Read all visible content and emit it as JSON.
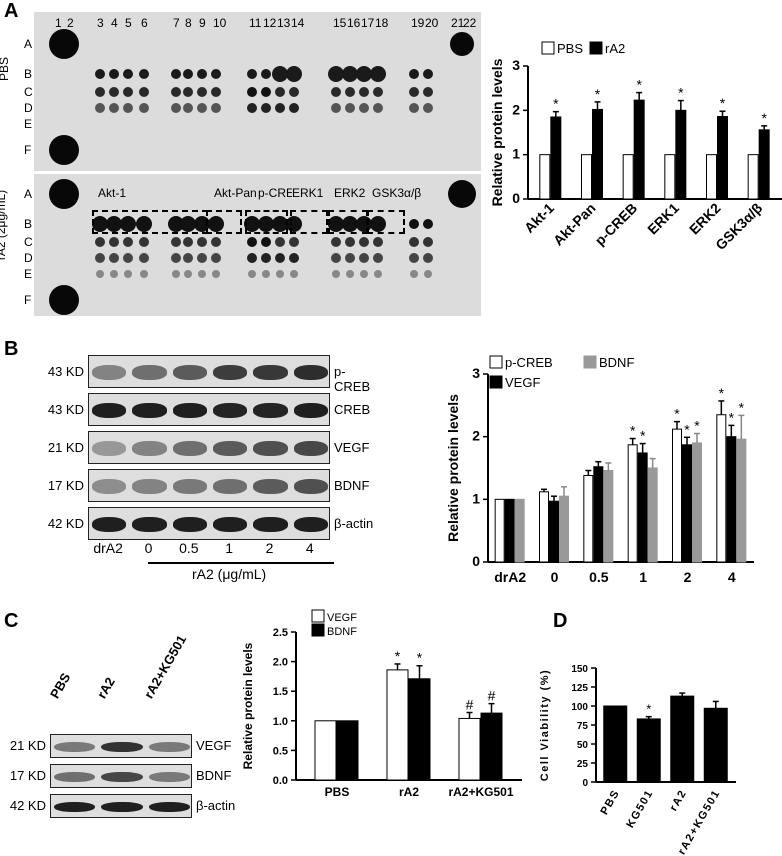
{
  "panels": {
    "a": {
      "label": "A",
      "column_numbers": [
        "1",
        "2",
        "3",
        "4",
        "5",
        "6",
        "7",
        "8",
        "9",
        "10",
        "11",
        "12",
        "13",
        "14",
        "15",
        "16",
        "17",
        "18",
        "19",
        "20",
        "21",
        "22"
      ],
      "row_letters_top": [
        "A",
        "B",
        "C",
        "D",
        "E",
        "F"
      ],
      "row_letters_bottom": [
        "A",
        "B",
        "C",
        "D",
        "E",
        "F"
      ],
      "group_top": "PBS",
      "group_bottom": "rA2 (2μg/mL)",
      "box_labels": [
        "Akt-1",
        "Akt-Pan",
        "p-CREB",
        "ERK1",
        "ERK2",
        "GSK3α/β"
      ],
      "chart_legend": [
        "PBS",
        "rA2"
      ]
    },
    "b": {
      "label": "B",
      "blot_kd": [
        "43 KD",
        "43 KD",
        "21 KD",
        "17 KD",
        "42 KD"
      ],
      "blot_names": [
        "p-CREB",
        "CREB",
        "VEGF",
        "BDNF",
        "β-actin"
      ],
      "lanes": [
        "drA2",
        "0",
        "0.5",
        "1",
        "2",
        "4"
      ],
      "lane_group": "rA2 (μg/mL)",
      "chart_legend": [
        "p-CREB",
        "BDNF",
        "VEGF"
      ]
    },
    "c": {
      "label": "C",
      "lanes": [
        "PBS",
        "rA2",
        "rA2+KG501"
      ],
      "blot_kd": [
        "21 KD",
        "17 KD",
        "42 KD"
      ],
      "blot_names": [
        "VEGF",
        "BDNF",
        "β-actin"
      ],
      "chart_legend": [
        "VEGF",
        "BDNF"
      ]
    },
    "d": {
      "label": "D"
    }
  },
  "chart_data": [
    {
      "type": "bar",
      "panel": "A",
      "categories": [
        "Akt-1",
        "Akt-Pan",
        "p-CREB",
        "ERK1",
        "ERK2",
        "GSK3α/β"
      ],
      "series": [
        {
          "name": "PBS",
          "values": [
            1,
            1,
            1,
            1,
            1,
            1
          ],
          "errors": [
            0,
            0,
            0,
            0,
            0,
            0
          ],
          "color": "#ffffff"
        },
        {
          "name": "rA2",
          "values": [
            1.85,
            2.02,
            2.23,
            2.0,
            1.86,
            1.56
          ],
          "errors": [
            0.12,
            0.17,
            0.17,
            0.22,
            0.12,
            0.09
          ],
          "color": "#000000",
          "marks": [
            "*",
            "*",
            "*",
            "*",
            "*",
            "*"
          ]
        }
      ],
      "ylabel": "Relative protein levels",
      "ylim": [
        0,
        3
      ],
      "yticks": [
        "0",
        "1",
        "2",
        "3"
      ]
    },
    {
      "type": "bar",
      "panel": "B",
      "categories": [
        "drA2",
        "0",
        "0.5",
        "1",
        "2",
        "4"
      ],
      "series": [
        {
          "name": "p-CREB",
          "values": [
            1.0,
            1.12,
            1.38,
            1.87,
            2.12,
            2.35
          ],
          "errors": [
            0,
            0.04,
            0.08,
            0.1,
            0.12,
            0.22
          ],
          "color": "#ffffff",
          "marks": [
            "",
            "",
            "",
            "*",
            "*",
            "*"
          ]
        },
        {
          "name": "VEGF",
          "values": [
            1.0,
            0.97,
            1.52,
            1.74,
            1.87,
            2.0
          ],
          "errors": [
            0,
            0.08,
            0.08,
            0.15,
            0.12,
            0.18
          ],
          "color": "#000000",
          "marks": [
            "",
            "",
            "",
            "*",
            "*",
            "*"
          ]
        },
        {
          "name": "BDNF",
          "values": [
            1.0,
            1.05,
            1.46,
            1.5,
            1.9,
            1.96
          ],
          "errors": [
            0,
            0.15,
            0.12,
            0.15,
            0.15,
            0.38
          ],
          "color": "#999999",
          "marks": [
            "",
            "",
            "",
            "",
            "*",
            "*"
          ]
        }
      ],
      "ylabel": "Relative protein levels",
      "xlabel": "rA2 (μg/mL)",
      "ylim": [
        0,
        3
      ],
      "yticks": [
        "0",
        "1",
        "2",
        "3"
      ]
    },
    {
      "type": "bar",
      "panel": "C",
      "categories": [
        "PBS",
        "rA2",
        "rA2+KG501"
      ],
      "series": [
        {
          "name": "VEGF",
          "values": [
            1.0,
            1.86,
            1.04
          ],
          "errors": [
            0,
            0.1,
            0.1
          ],
          "color": "#ffffff",
          "marks": [
            "",
            "*",
            "#"
          ]
        },
        {
          "name": "BDNF",
          "values": [
            1.0,
            1.71,
            1.13
          ],
          "errors": [
            0,
            0.22,
            0.16
          ],
          "color": "#000000",
          "marks": [
            "",
            "*",
            "#"
          ]
        }
      ],
      "ylabel": "Relative protein levels",
      "ylim": [
        0,
        2.5
      ],
      "yticks": [
        "0.0",
        "0.5",
        "1.0",
        "1.5",
        "2.0",
        "2.5"
      ]
    },
    {
      "type": "bar",
      "panel": "D",
      "categories": [
        "PBS",
        "KG501",
        "rA2",
        "rA2+KG501"
      ],
      "series": [
        {
          "name": "",
          "values": [
            100,
            83,
            113,
            97
          ],
          "errors": [
            0,
            3,
            4,
            9
          ],
          "color": "#000000",
          "marks": [
            "",
            "*",
            "",
            ""
          ]
        }
      ],
      "ylabel": "Cell Viability (%)",
      "ylim": [
        0,
        150
      ],
      "yticks": [
        "0",
        "25",
        "50",
        "75",
        "100",
        "125",
        "150"
      ]
    }
  ]
}
